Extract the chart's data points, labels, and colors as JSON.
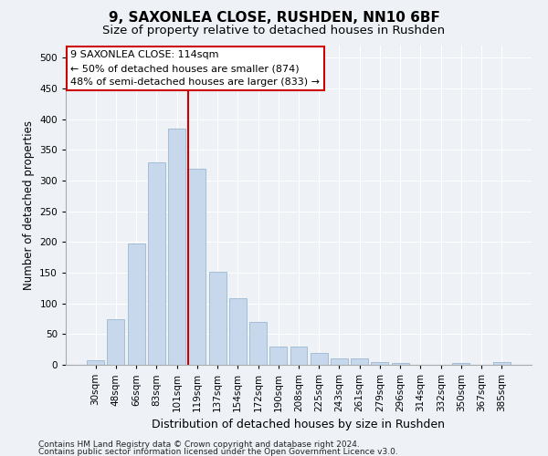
{
  "title1": "9, SAXONLEA CLOSE, RUSHDEN, NN10 6BF",
  "title2": "Size of property relative to detached houses in Rushden",
  "xlabel": "Distribution of detached houses by size in Rushden",
  "ylabel": "Number of detached properties",
  "categories": [
    "30sqm",
    "48sqm",
    "66sqm",
    "83sqm",
    "101sqm",
    "119sqm",
    "137sqm",
    "154sqm",
    "172sqm",
    "190sqm",
    "208sqm",
    "225sqm",
    "243sqm",
    "261sqm",
    "279sqm",
    "296sqm",
    "314sqm",
    "332sqm",
    "350sqm",
    "367sqm",
    "385sqm"
  ],
  "values": [
    8,
    75,
    197,
    330,
    385,
    320,
    152,
    108,
    70,
    30,
    30,
    19,
    11,
    11,
    5,
    3,
    0,
    0,
    3,
    0,
    4
  ],
  "bar_color": "#c8d8ec",
  "bar_edge_color": "#9ab8d0",
  "vline_x_index": 4.55,
  "vline_color": "#cc0000",
  "annotation_line1": "9 SAXONLEA CLOSE: 114sqm",
  "annotation_line2": "← 50% of detached houses are smaller (874)",
  "annotation_line3": "48% of semi-detached houses are larger (833) →",
  "box_edge_color": "#cc0000",
  "ylim": [
    0,
    520
  ],
  "yticks": [
    0,
    50,
    100,
    150,
    200,
    250,
    300,
    350,
    400,
    450,
    500
  ],
  "background_color": "#eef2f7",
  "plot_bg_color": "#eef2f7",
  "footnote1": "Contains HM Land Registry data © Crown copyright and database right 2024.",
  "footnote2": "Contains public sector information licensed under the Open Government Licence v3.0.",
  "title1_fontsize": 11,
  "title2_fontsize": 9.5,
  "xlabel_fontsize": 9,
  "ylabel_fontsize": 8.5,
  "tick_fontsize": 7.5,
  "annotation_fontsize": 8,
  "footnote_fontsize": 6.5
}
